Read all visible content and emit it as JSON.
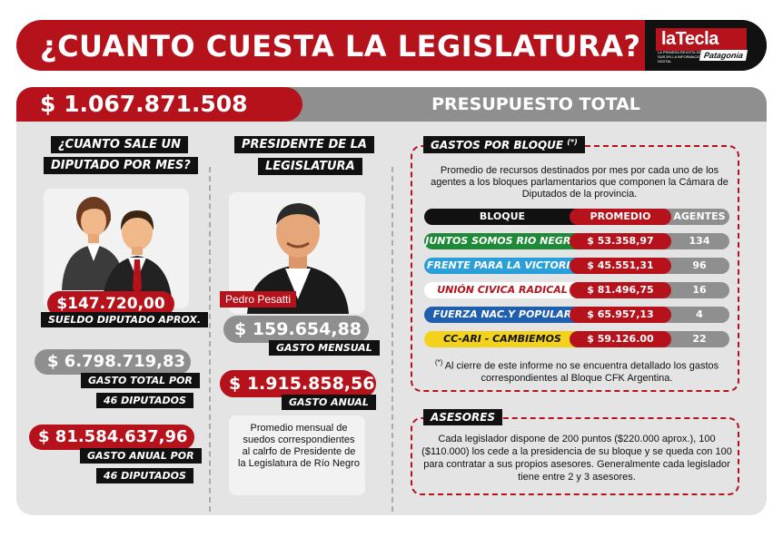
{
  "header": {
    "title": "¿CUANTO CUESTA LA LEGISLATURA?",
    "logo_main": "laTecla",
    "logo_tagline": "LA PRIMERA REVISTA DEL SUR EN LA INFORMACIÓN DIGITAL",
    "logo_sub": "Patagonia"
  },
  "total": {
    "value": "$ 1.067.871.508",
    "label": "PRESUPUESTO TOTAL"
  },
  "diputado": {
    "heading_line1": "¿CUANTO SALE UN",
    "heading_line2": "DIPUTADO POR MES?",
    "sueldo_value": "$147.720,00",
    "sueldo_label": "SUELDO DIPUTADO APROX.",
    "gasto_total_value": "$ 6.798.719,83",
    "gasto_total_label_line1": "GASTO TOTAL POR",
    "gasto_total_label_line2": "46 DIPUTADOS",
    "gasto_anual_value": "$ 81.584.637,96",
    "gasto_anual_label_line1": "GASTO ANUAL POR",
    "gasto_anual_label_line2": "46 DIPUTADOS"
  },
  "presidente": {
    "heading_line1": "PRESIDENTE DE LA",
    "heading_line2": "LEGISLATURA",
    "name": "Pedro Pesatti",
    "mensual_value": "$ 159.654,88",
    "mensual_label": "GASTO MENSUAL",
    "anual_value": "$ 1.915.858,56",
    "anual_label": "GASTO ANUAL",
    "description": "Promedio mensual de suedos correspondientes al calrfo de Presidente de la Legislatura de Río Negro"
  },
  "bloques": {
    "heading": "GASTOS POR BLOQUE",
    "heading_mark": "(*)",
    "intro": "Promedio de recursos destinados por mes por cada uno de los agentes a los bloques parlamentarios que componen la Cámara de Diputados de la provincia.",
    "columns": [
      "BLOQUE",
      "PROMEDIO",
      "AGENTES"
    ],
    "rows": [
      {
        "bloque": "JUNTOS SOMOS RIO NEGRO",
        "promedio": "$ 53.358,97",
        "agentes": "134",
        "color": "#1e8a35",
        "text_color": "#ffffff"
      },
      {
        "bloque": "FRENTE PARA LA VICTORIA",
        "promedio": "$ 45.551,31",
        "agentes": "96",
        "color": "#2a9fd8",
        "text_color": "#ffffff"
      },
      {
        "bloque": "UNIÓN CIVICA RADICAL",
        "promedio": "$ 81.496,75",
        "agentes": "16",
        "color": "#ffffff",
        "text_color": "#b5121b"
      },
      {
        "bloque": "FUERZA NAC.Y POPULAR",
        "promedio": "$ 65.957,13",
        "agentes": "4",
        "color": "#1f5fae",
        "text_color": "#ffffff"
      },
      {
        "bloque": "CC-ARI - CAMBIEMOS",
        "promedio": "$ 59.126.00",
        "agentes": "22",
        "color": "#f2d21b",
        "text_color": "#111111"
      }
    ],
    "footnote_mark": "(*)",
    "footnote": "Al cierre de este informe no se encuentra detallado los gastos correspondientes al Bloque CFK Argentina."
  },
  "asesores": {
    "heading": "ASESORES",
    "text": "Cada legislador dispone de 200 puntos ($220.000 aprox.), 100 ($110.000) los cede a la presidencia de su bloque y se queda con 100 para contratar a sus propios asesores. Generalmente cada legislador tiene entre 2 y 3 asesores."
  },
  "colors": {
    "brand_red": "#b5121b",
    "grey": "#8f8f8f",
    "panel": "#e4e4e4",
    "black": "#111111"
  }
}
